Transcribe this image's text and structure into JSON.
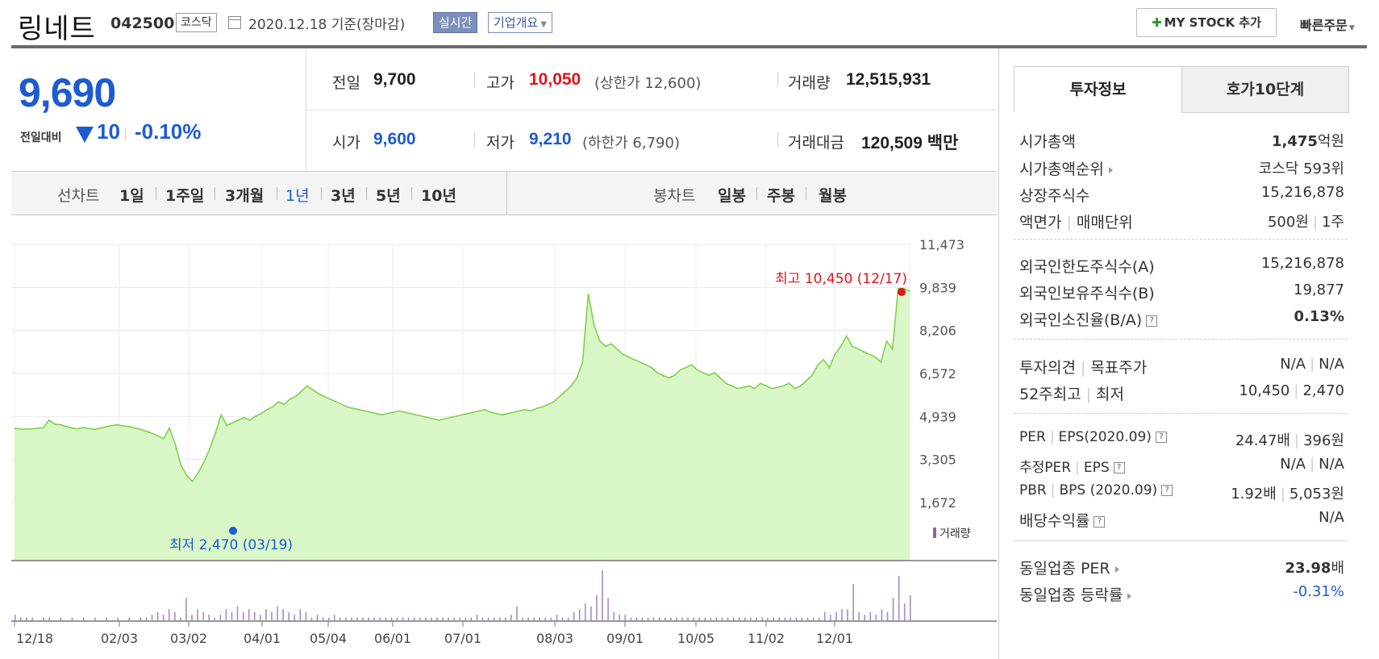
{
  "header": {
    "company_name": "링네트",
    "stock_code": "042500",
    "market_tag": "코스닥",
    "base_date": "2020.12.18 기준(장마감)",
    "realtime_btn": "실시간",
    "overview_btn": "기업개요",
    "mystock_btn": "MY STOCK 추가",
    "quick_order": "빠른주문"
  },
  "price": {
    "current": "9,690",
    "change_label": "전일대비",
    "change_value": "10",
    "change_pct": "-0.10%",
    "colors": {
      "down": "#1d5bd2",
      "up": "#e1141a"
    }
  },
  "stats": {
    "prev_label": "전일",
    "prev_value": "9,700",
    "high_label": "고가",
    "high_value": "10,050",
    "upper_limit": "(상한가 12,600)",
    "volume_label": "거래량",
    "volume_value": "12,515,931",
    "open_label": "시가",
    "open_value": "9,600",
    "low_label": "저가",
    "low_value": "9,210",
    "lower_limit": "(하한가 6,790)",
    "amount_label": "거래대금",
    "amount_value": "120,509 백만"
  },
  "period_bar": {
    "line_chart_label": "선차트",
    "line_periods": [
      "1일",
      "1주일",
      "3개월",
      "1년",
      "3년",
      "5년",
      "10년"
    ],
    "active_period": "1년",
    "candle_label": "봉차트",
    "candle_periods": [
      "일봉",
      "주봉",
      "월봉"
    ]
  },
  "right_panel": {
    "tabs": [
      "투자정보",
      "호가10단계"
    ],
    "active_tab": "투자정보",
    "rows": {
      "market_cap_label": "시가총액",
      "market_cap_value": "1,475",
      "market_cap_unit": "억원",
      "cap_rank_label": "시가총액순위",
      "cap_rank_value": "코스닥 593위",
      "shares_label": "상장주식수",
      "shares_value": "15,216,878",
      "face_label_a": "액면가",
      "face_label_b": "매매단위",
      "face_value_a": "500원",
      "face_value_b": "1주",
      "foreign_limit_label": "외국인한도주식수(A)",
      "foreign_limit_value": "15,216,878",
      "foreign_hold_label": "외국인보유주식수(B)",
      "foreign_hold_value": "19,877",
      "foreign_ratio_label": "외국인소진율(B/A)",
      "foreign_ratio_value": "0.13%",
      "opinion_label_a": "투자의견",
      "opinion_label_b": "목표주가",
      "opinion_value_a": "N/A",
      "opinion_value_b": "N/A",
      "w52_label_a": "52주최고",
      "w52_label_b": "최저",
      "w52_value_a": "10,450",
      "w52_value_b": "2,470",
      "per_label_a": "PER",
      "per_label_b": "EPS(2020.09)",
      "per_value_a": "24.47배",
      "per_value_b": "396원",
      "est_label_a": "추정PER",
      "est_label_b": "EPS",
      "est_value_a": "N/A",
      "est_value_b": "N/A",
      "pbr_label_a": "PBR",
      "pbr_label_b": "BPS (2020.09)",
      "pbr_value_a": "1.92배",
      "pbr_value_b": "5,053원",
      "div_label": "배당수익률",
      "div_value": "N/A",
      "sector_per_label": "동일업종 PER",
      "sector_per_value": "23.98",
      "sector_per_unit": "배",
      "sector_chg_label": "동일업종 등락률",
      "sector_chg_value": "-0.31%"
    }
  },
  "chart_data": {
    "type": "area",
    "y_ticks": [
      "11,473",
      "9,839",
      "8,206",
      "6,572",
      "4,939",
      "3,305",
      "1,672"
    ],
    "ylim": [
      1672,
      11473
    ],
    "x_ticks": [
      "12/18",
      "02/03",
      "03/02",
      "04/01",
      "05/04",
      "06/01",
      "07/01",
      "08/03",
      "09/01",
      "10/05",
      "11/02",
      "12/01"
    ],
    "max_annotation": "최고 10,450 (12/17)",
    "min_annotation": "최저 2,470 (03/19)",
    "volume_legend": "거래량",
    "line_color": "#7fd14a",
    "fill_color": "#d6f5c2",
    "series": [
      4500,
      4460,
      4460,
      4470,
      4490,
      4510,
      4800,
      4650,
      4630,
      4560,
      4500,
      4470,
      4520,
      4480,
      4450,
      4500,
      4550,
      4600,
      4620,
      4580,
      4560,
      4500,
      4450,
      4380,
      4300,
      4200,
      4100,
      4500,
      3900,
      3100,
      2700,
      2470,
      2800,
      3200,
      3700,
      4300,
      5000,
      4600,
      4700,
      4800,
      4900,
      4800,
      4950,
      5050,
      5200,
      5300,
      5500,
      5400,
      5600,
      5700,
      5900,
      6100,
      5950,
      5800,
      5700,
      5600,
      5500,
      5400,
      5300,
      5250,
      5200,
      5150,
      5100,
      5050,
      5000,
      5050,
      5100,
      5150,
      5100,
      5050,
      5000,
      4950,
      4900,
      4850,
      4800,
      4850,
      4900,
      4950,
      5000,
      5050,
      5100,
      5150,
      5200,
      5100,
      5050,
      5000,
      5050,
      5100,
      5150,
      5200,
      5150,
      5250,
      5300,
      5400,
      5500,
      5700,
      5900,
      6100,
      6400,
      7000,
      9600,
      8400,
      7800,
      7600,
      7700,
      7500,
      7300,
      7200,
      7100,
      7000,
      6900,
      6800,
      6600,
      6500,
      6400,
      6500,
      6700,
      6800,
      6900,
      6700,
      6600,
      6500,
      6600,
      6400,
      6200,
      6100,
      6000,
      6050,
      6100,
      6000,
      6200,
      6100,
      6000,
      6050,
      6100,
      6200,
      6000,
      6100,
      6300,
      6500,
      6900,
      7100,
      6800,
      7300,
      7600,
      8000,
      7600,
      7500,
      7400,
      7300,
      7200,
      7000,
      7800,
      7500,
      9800,
      9800,
      9690
    ],
    "volume": [
      2,
      1,
      1,
      1,
      0,
      1,
      1,
      0,
      1,
      0,
      1,
      0,
      1,
      0,
      1,
      0,
      1,
      0,
      1,
      0,
      1,
      0,
      1,
      1,
      2,
      3,
      2,
      4,
      3,
      1,
      8,
      2,
      4,
      3,
      2,
      1,
      2,
      4,
      3,
      5,
      3,
      4,
      3,
      2,
      4,
      3,
      5,
      4,
      3,
      2,
      4,
      3,
      1,
      2,
      1,
      1,
      2,
      1,
      1,
      1,
      1,
      1,
      1,
      1,
      1,
      1,
      1,
      1,
      1,
      1,
      1,
      1,
      1,
      1,
      1,
      1,
      1,
      1,
      1,
      1,
      1,
      2,
      1,
      1,
      1,
      1,
      1,
      2,
      5,
      1,
      1,
      1,
      1,
      1,
      1,
      2,
      1,
      1,
      3,
      4,
      6,
      5,
      9,
      18,
      8,
      3,
      2,
      2,
      1,
      1,
      1,
      1,
      1,
      1,
      1,
      1,
      1,
      1,
      1,
      1,
      1,
      1,
      1,
      1,
      1,
      1,
      1,
      1,
      1,
      1,
      1,
      1,
      1,
      1,
      1,
      1,
      1,
      1,
      1,
      1,
      1,
      1,
      3,
      2,
      3,
      4,
      4,
      13,
      3,
      2,
      3,
      2,
      4,
      3,
      8,
      16,
      6,
      9
    ]
  }
}
